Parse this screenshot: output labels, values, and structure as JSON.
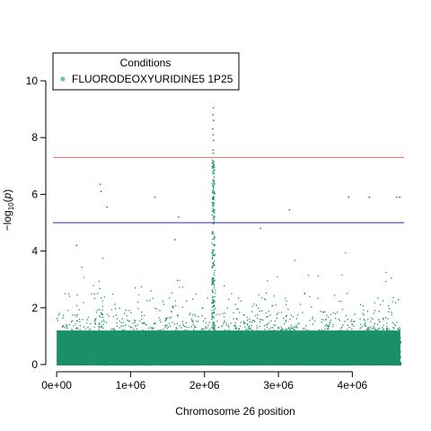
{
  "chart_data": {
    "type": "scatter",
    "title": "",
    "xlabel": "Chromosome 26 position",
    "ylabel_prefix": "−log",
    "ylabel_sub": "10",
    "ylabel_var": "p",
    "xlim": [
      -50000,
      4700000
    ],
    "ylim": [
      0,
      11
    ],
    "x_ticks": [
      {
        "value": 0,
        "label": "0e+00"
      },
      {
        "value": 1000000,
        "label": "1e+06"
      },
      {
        "value": 2000000,
        "label": "2e+06"
      },
      {
        "value": 3000000,
        "label": "3e+06"
      },
      {
        "value": 4000000,
        "label": "4e+06"
      }
    ],
    "y_ticks": [
      {
        "value": 0,
        "label": "0"
      },
      {
        "value": 2,
        "label": "2"
      },
      {
        "value": 4,
        "label": "4"
      },
      {
        "value": 6,
        "label": "6"
      },
      {
        "value": 8,
        "label": "8"
      },
      {
        "value": 10,
        "label": "10"
      }
    ],
    "threshold_lines": [
      {
        "value": 7.3,
        "color": "#e8696b"
      },
      {
        "value": 5.0,
        "color": "#2b2bbf"
      }
    ],
    "legend": {
      "title": "Conditions",
      "placement": "top-left",
      "entries": [
        {
          "label": "FLUORODEOXYURIDINE5 1P25",
          "color": "#6fc4a8"
        }
      ]
    },
    "series": [
      {
        "name": "FLUORODEOXYURIDINE5 1P25",
        "color": "#1a9068",
        "chromosome_range": [
          0,
          4650000
        ],
        "outlier_points": [
          {
            "x": 2120000,
            "y": 9.05
          },
          {
            "x": 2115000,
            "y": 8.8
          },
          {
            "x": 2125000,
            "y": 8.6
          },
          {
            "x": 2110000,
            "y": 8.3
          },
          {
            "x": 2118000,
            "y": 8.1
          },
          {
            "x": 2122000,
            "y": 7.9
          },
          {
            "x": 2116000,
            "y": 7.55
          },
          {
            "x": 2119000,
            "y": 7.45
          },
          {
            "x": 2113000,
            "y": 7.2
          },
          {
            "x": 2121000,
            "y": 7.0
          },
          {
            "x": 2117000,
            "y": 6.8
          },
          {
            "x": 2124000,
            "y": 6.5
          },
          {
            "x": 2114000,
            "y": 6.3
          },
          {
            "x": 590000,
            "y": 6.35
          },
          {
            "x": 600000,
            "y": 6.1
          },
          {
            "x": 680000,
            "y": 5.55
          },
          {
            "x": 1330000,
            "y": 5.9
          },
          {
            "x": 1650000,
            "y": 5.2
          },
          {
            "x": 3150000,
            "y": 5.45
          },
          {
            "x": 3950000,
            "y": 5.9
          },
          {
            "x": 4230000,
            "y": 5.9
          },
          {
            "x": 4600000,
            "y": 5.9
          },
          {
            "x": 4640000,
            "y": 5.9
          },
          {
            "x": 2760000,
            "y": 4.8
          },
          {
            "x": 270000,
            "y": 4.2
          },
          {
            "x": 1600000,
            "y": 4.4
          }
        ]
      }
    ]
  }
}
